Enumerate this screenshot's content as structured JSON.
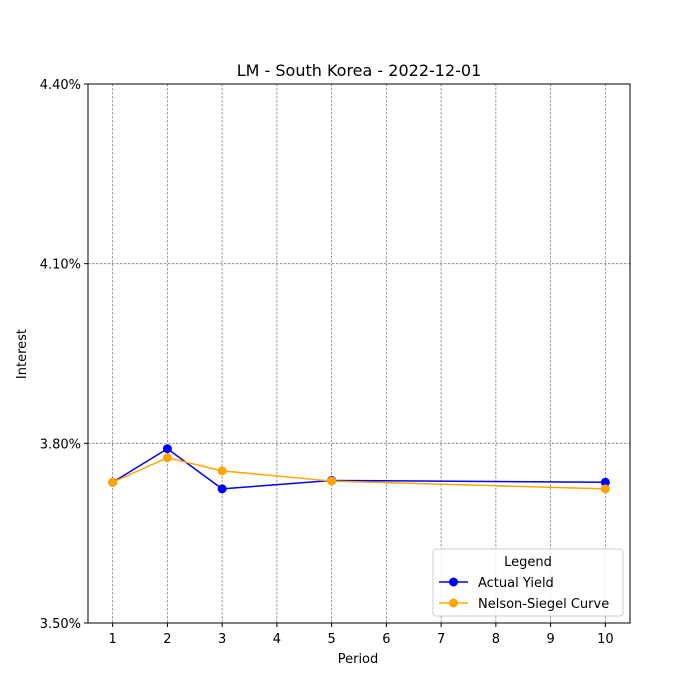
{
  "chart_data": {
    "type": "line",
    "title": "LM - South Korea - 2022-12-01",
    "xlabel": "Period",
    "ylabel": "Interest",
    "x": [
      1,
      2,
      3,
      5,
      10
    ],
    "xticks": [
      1,
      2,
      3,
      4,
      5,
      6,
      7,
      8,
      9,
      10
    ],
    "xlim": [
      0.55,
      10.45
    ],
    "yticks": [
      3.5,
      3.8,
      4.1,
      4.4
    ],
    "ytick_labels": [
      "3.50%",
      "3.80%",
      "4.10%",
      "4.40%"
    ],
    "ylim": [
      3.5,
      4.4
    ],
    "grid": true,
    "legend": {
      "title": "Legend",
      "placement": "lower-right"
    },
    "series": [
      {
        "name": "Actual Yield",
        "color": "#0000ff",
        "marker": "circle",
        "values": [
          3.735,
          3.791,
          3.724,
          3.738,
          3.735
        ]
      },
      {
        "name": "Nelson-Siegel Curve",
        "color": "#ffa500",
        "marker": "circle",
        "values": [
          3.735,
          3.776,
          3.754,
          3.737,
          3.724
        ]
      }
    ]
  }
}
